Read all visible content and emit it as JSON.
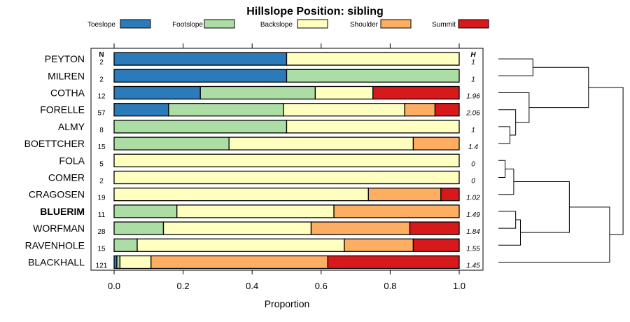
{
  "chart_data": {
    "type": "bar",
    "orientation": "horizontal",
    "stacked": true,
    "title": "Hillslope Position: sibling",
    "xlabel": "Proportion",
    "ylabel": "",
    "xlim": [
      0,
      1
    ],
    "xticks": [
      0,
      0.2,
      0.4,
      0.6,
      0.8,
      1
    ],
    "xtick_labels": [
      "0.0",
      "0.2",
      "0.4",
      "0.6",
      "0.8",
      "1.0"
    ],
    "n_header": "N",
    "h_header": "H",
    "legend": [
      {
        "name": "Toeslope",
        "color": "#2b7bba"
      },
      {
        "name": "Footslope",
        "color": "#abdda4"
      },
      {
        "name": "Backslope",
        "color": "#ffffbf"
      },
      {
        "name": "Shoulder",
        "color": "#fdae61"
      },
      {
        "name": "Summit",
        "color": "#d7191c"
      }
    ],
    "rows": [
      {
        "name": "PEYTON",
        "n": "2",
        "h": "1",
        "bold": false,
        "values": [
          0.5,
          0,
          0.5,
          0,
          0
        ]
      },
      {
        "name": "MILREN",
        "n": "2",
        "h": "1",
        "bold": false,
        "values": [
          0.5,
          0.5,
          0,
          0,
          0
        ]
      },
      {
        "name": "COTHA",
        "n": "12",
        "h": "1.96",
        "bold": false,
        "values": [
          0.25,
          0.333,
          0.167,
          0,
          0.25
        ]
      },
      {
        "name": "FORELLE",
        "n": "57",
        "h": "2.06",
        "bold": false,
        "values": [
          0.158,
          0.333,
          0.351,
          0.088,
          0.07
        ]
      },
      {
        "name": "ALMY",
        "n": "8",
        "h": "1",
        "bold": false,
        "values": [
          0,
          0.5,
          0.5,
          0,
          0
        ]
      },
      {
        "name": "BOETTCHER",
        "n": "15",
        "h": "1.4",
        "bold": false,
        "values": [
          0,
          0.333,
          0.534,
          0.133,
          0
        ]
      },
      {
        "name": "FOLA",
        "n": "5",
        "h": "0",
        "bold": false,
        "values": [
          0,
          0,
          1,
          0,
          0
        ]
      },
      {
        "name": "COMER",
        "n": "2",
        "h": "0",
        "bold": false,
        "values": [
          0,
          0,
          1,
          0,
          0
        ]
      },
      {
        "name": "CRAGOSEN",
        "n": "19",
        "h": "1.02",
        "bold": false,
        "values": [
          0,
          0,
          0.737,
          0.21,
          0.053
        ]
      },
      {
        "name": "BLUERIM",
        "n": "11",
        "h": "1.49",
        "bold": true,
        "values": [
          0,
          0.182,
          0.455,
          0.363,
          0
        ]
      },
      {
        "name": "WORFMAN",
        "n": "28",
        "h": "1.84",
        "bold": false,
        "values": [
          0,
          0.143,
          0.428,
          0.286,
          0.143
        ]
      },
      {
        "name": "RAVENHOLE",
        "n": "15",
        "h": "1.55",
        "bold": false,
        "values": [
          0,
          0.067,
          0.6,
          0.2,
          0.133
        ]
      },
      {
        "name": "BLACKHALL",
        "n": "121",
        "h": "1.45",
        "bold": false,
        "values": [
          0.008,
          0.009,
          0.09,
          0.512,
          0.381
        ]
      }
    ],
    "dendrogram": {
      "merges": [
        {
          "a": "PEYTON",
          "b": "MILREN",
          "height": 0.18
        },
        {
          "a": "ALMY",
          "b": "BOETTCHER",
          "height": 0.06
        },
        {
          "a": "FORELLE",
          "b": "[ALMY,BOETTCHER]",
          "height": 0.09
        },
        {
          "a": "COTHA",
          "b": "[FORELLE,ALMY,BOETTCHER]",
          "height": 0.16
        },
        {
          "a": "[PEYTON,MILREN]",
          "b": "[COTHA,FORELLE,ALMY,BOETTCHER]",
          "height": 0.47
        },
        {
          "a": "FOLA",
          "b": "COMER",
          "height": 0.035
        },
        {
          "a": "[FOLA,COMER]",
          "b": "CRAGOSEN",
          "height": 0.08
        },
        {
          "a": "BLUERIM",
          "b": "WORFMAN",
          "height": 0.09
        },
        {
          "a": "[BLUERIM,WORFMAN]",
          "b": "RAVENHOLE",
          "height": 0.115
        },
        {
          "a": "[FOLA,COMER,CRAGOSEN]",
          "b": "[BLUERIM,WORFMAN,RAVENHOLE]",
          "height": 0.37
        },
        {
          "a": "[FOLA..RAVENHOLE]",
          "b": "BLACKHALL",
          "height": 0.58
        },
        {
          "a": "[PEYTON..BOETTCHER]",
          "b": "[FOLA..BLACKHALL]",
          "height": 0.65
        }
      ]
    }
  }
}
